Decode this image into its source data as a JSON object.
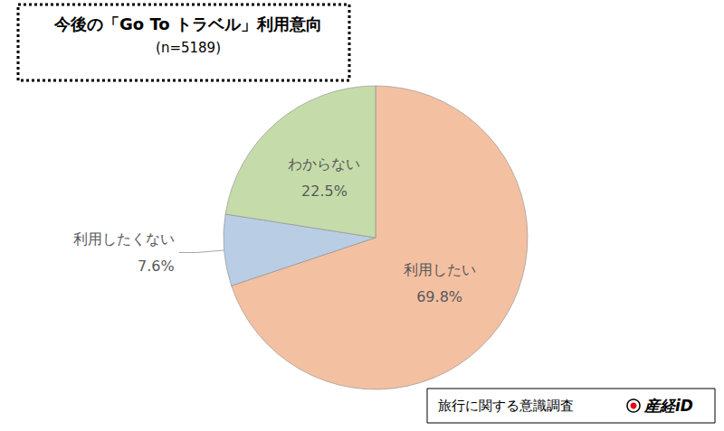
{
  "chart_data": {
    "type": "pie",
    "title": "今後の「Go To トラベル」利用意向",
    "subtitle": "(n=5189)",
    "categories": [
      "利用したい",
      "利用したくない",
      "わからない"
    ],
    "values": [
      69.8,
      7.6,
      22.5
    ],
    "value_labels": [
      "69.8%",
      "7.6%",
      "22.5%"
    ],
    "colors": [
      "#f4c0a2",
      "#b9cde5",
      "#c5dcaa"
    ],
    "data_labels": true,
    "annotations": [
      "旅行に関する意識調査",
      "産経iD"
    ]
  }
}
